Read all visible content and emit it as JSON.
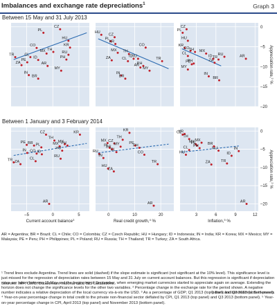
{
  "header": {
    "title": "Imbalances and exchange rate depreciations",
    "title_sup": "1",
    "graph_label": "Graph 3"
  },
  "sections": [
    "Between 15 May and 31 July 2013",
    "Between 1 January and 3 February 2014"
  ],
  "y_axis_label": "Appreciation rate,",
  "y_axis_sup": "2",
  "y_axis_unit": " %",
  "x_labels": [
    {
      "text": "Current account balance",
      "sup": "3"
    },
    {
      "text": "Real credit growth,",
      "sup": "4",
      "unit": " %"
    },
    {
      "text": "Inflation,",
      "sup": "5",
      "unit": " %"
    }
  ],
  "notes": "AR = Argentina; BR = Brazil; CL = Chile; CO = Colombia; CZ = Czech Republic; HU = Hungary; ID = Indonesia; IN = India; KR = Korea; MX = Mexico; MY = Malaysia; PE = Peru; PH = Philippines; PL = Poland; RU = Russia; TH = Thailand; TR = Turkey; ZA = South Africa.",
  "footnote": "¹ Trend lines exclude Argentina. Trend lines are solid (dashed) if the slope estimate is significant (not significant at the 10% level). This significance level is just missed for the regression of depreciation rates between 15 May and 31 July on current account balances. But this regression is significant if depreciation rates are taken between 15 May and the beginning of September, when emerging market currencies started to appreciate again on average. Extending the horizon does not change the significance levels for the other two variables. ² Percentage change in the exchange rate for the period shown. A negative number indicates a relative depreciation of the local currency vis-à-vis the USD. ³ As a percentage of GDP; Q1 2013 (top panel) and Q3 2013 (bottom panel). ⁴ Year-on-year percentage change in total credit to the private non-financial sector deflated by CPI, Q1 2013 (top panel) and Q3 2013 (bottom panel). ⁵ Year-on-year percentage change in CPI, April 2013 (top panel) and November 2013 (bottom panel).",
  "sources": "Sources: IMF; CEIC; Datastream; national data; BIS calculations.",
  "copyright": "© Bank for International Settlements",
  "colors": {
    "point": "#c0202a",
    "trend": "#2a6ab0",
    "panel_bg": "#dde6f1",
    "rule": "#2a4a8a"
  },
  "chart_data": [
    {
      "type": "scatter",
      "name": "top-left",
      "xlim": [
        -8,
        7
      ],
      "ylim": [
        -20,
        1
      ],
      "xticks": [
        -5,
        0,
        5
      ],
      "yticks": [
        0,
        -5,
        -10,
        -15,
        -20
      ],
      "show_yticks": false,
      "show_xticks": false,
      "trend": {
        "style": "solid",
        "x": [
          -7.5,
          6.5
        ],
        "y": [
          -8.2,
          -1.5
        ]
      },
      "points": [
        {
          "label": "CZ",
          "x": 1.4,
          "y": -0.6
        },
        {
          "label": "PL",
          "x": -1.8,
          "y": -1.5
        },
        {
          "label": "HU",
          "x": 3.0,
          "y": -3.5
        },
        {
          "label": "KR",
          "x": 3.3,
          "y": -5.2
        },
        {
          "label": "CO",
          "x": -3.1,
          "y": -5.3
        },
        {
          "label": "MX",
          "x": -1.2,
          "y": -6.7
        },
        {
          "label": "CL",
          "x": -4.3,
          "y": -7.6
        },
        {
          "label": "TH",
          "x": 0.1,
          "y": -6.3
        },
        {
          "label": "RU",
          "x": 3.0,
          "y": -7.0
        },
        {
          "label": "PH",
          "x": 2.6,
          "y": -8.2
        },
        {
          "label": "TR",
          "x": -7.2,
          "y": -7.6
        },
        {
          "label": "ID",
          "x": -2.8,
          "y": -8.3
        },
        {
          "label": "PE",
          "x": -4.9,
          "y": -8.9
        },
        {
          "label": "ZA",
          "x": -6.0,
          "y": -9.6
        },
        {
          "label": "AR",
          "x": -1.0,
          "y": -9.8
        },
        {
          "label": "MY",
          "x": 1.6,
          "y": -11.0
        },
        {
          "label": "IN",
          "x": -4.6,
          "y": -12.1
        },
        {
          "label": "BR",
          "x": -2.8,
          "y": -13.0
        }
      ]
    },
    {
      "type": "scatter",
      "name": "top-middle",
      "xlim": [
        -5,
        25
      ],
      "ylim": [
        -20,
        1
      ],
      "xticks": [
        0,
        10,
        20
      ],
      "yticks": [
        0,
        -5,
        -10,
        -15,
        -20
      ],
      "show_yticks": false,
      "show_xticks": false,
      "trend": {
        "style": "solid",
        "x": [
          -4,
          23
        ],
        "y": [
          -3.0,
          -10.5
        ]
      },
      "points": [
        {
          "label": "HU",
          "x": -2.8,
          "y": -2.0
        },
        {
          "label": "CZ",
          "x": 2.3,
          "y": -2.6
        },
        {
          "label": "PL",
          "x": 0.8,
          "y": -3.6
        },
        {
          "label": "KR",
          "x": 2.6,
          "y": -4.3
        },
        {
          "label": "CO",
          "x": 14.2,
          "y": -5.2
        },
        {
          "label": "MX",
          "x": 3.5,
          "y": -6.5
        },
        {
          "label": "TH",
          "x": 7.8,
          "y": -6.8
        },
        {
          "label": "ZA",
          "x": 1.2,
          "y": -8.4
        },
        {
          "label": "ID",
          "x": 9.6,
          "y": -8.0
        },
        {
          "label": "CL",
          "x": 7.4,
          "y": -8.6
        },
        {
          "label": "RU",
          "x": 11.3,
          "y": -8.0
        },
        {
          "label": "PH",
          "x": 13.3,
          "y": -9.8
        },
        {
          "label": "AR",
          "x": 12.2,
          "y": -10.2
        },
        {
          "label": "TR",
          "x": 20.5,
          "y": -8.6
        },
        {
          "label": "MY",
          "x": 15.7,
          "y": -11.0
        },
        {
          "label": "IN",
          "x": 4.8,
          "y": -12.2
        },
        {
          "label": "BR",
          "x": 6.4,
          "y": -13.0
        }
      ]
    },
    {
      "type": "scatter",
      "name": "top-right",
      "xlim": [
        0.5,
        12.5
      ],
      "ylim": [
        -20,
        1
      ],
      "xticks": [
        3,
        6,
        9,
        12
      ],
      "yticks": [
        0,
        -5,
        -10,
        -15,
        -20
      ],
      "show_yticks": true,
      "show_xticks": false,
      "trend": {
        "style": "solid",
        "x": [
          0.8,
          6.8
        ],
        "y": [
          -5.5,
          -9.8
        ]
      },
      "points": [
        {
          "label": "CZ",
          "x": 1.5,
          "y": -0.6
        },
        {
          "label": "PL",
          "x": 0.9,
          "y": -1.5
        },
        {
          "label": "HU",
          "x": 1.7,
          "y": -3.5
        },
        {
          "label": "KR",
          "x": 1.2,
          "y": -5.3
        },
        {
          "label": "CO",
          "x": 2.1,
          "y": -6.0
        },
        {
          "label": "TH",
          "x": 2.8,
          "y": -6.3
        },
        {
          "label": "CL",
          "x": 1.7,
          "y": -7.3
        },
        {
          "label": "MX",
          "x": 4.5,
          "y": -6.7
        },
        {
          "label": "RU",
          "x": 7.3,
          "y": -7.5
        },
        {
          "label": "AR",
          "x": 10.6,
          "y": -8.0
        },
        {
          "label": "PE",
          "x": 2.3,
          "y": -9.4
        },
        {
          "label": "PH",
          "x": 2.6,
          "y": -9.2
        },
        {
          "label": "ZA",
          "x": 5.8,
          "y": -9.0
        },
        {
          "label": "ID",
          "x": 5.6,
          "y": -8.0
        },
        {
          "label": "TR",
          "x": 6.4,
          "y": -8.2
        },
        {
          "label": "MY",
          "x": 1.7,
          "y": -10.7
        },
        {
          "label": "IN",
          "x": 4.9,
          "y": -12.4
        },
        {
          "label": "BR",
          "x": 6.5,
          "y": -13.4
        }
      ]
    },
    {
      "type": "scatter",
      "name": "bottom-left",
      "xlim": [
        -8,
        7
      ],
      "ylim": [
        -22,
        1
      ],
      "xticks": [
        -5,
        0,
        5
      ],
      "yticks": [
        0,
        -5,
        -10,
        -15,
        -20
      ],
      "show_yticks": false,
      "show_xticks": true,
      "trend": {
        "style": "dashed",
        "x": [
          -7.5,
          6.5
        ],
        "y": [
          -6.7,
          -3.4
        ]
      },
      "points": [
        {
          "label": "CZ",
          "x": -1.3,
          "y": -1.0
        },
        {
          "label": "KR",
          "x": 5.2,
          "y": -1.0
        },
        {
          "label": "PE",
          "x": -5.0,
          "y": -3.8
        },
        {
          "label": "BR",
          "x": -3.6,
          "y": -4.0
        },
        {
          "label": "TH",
          "x": 0.3,
          "y": -2.6
        },
        {
          "label": "MX",
          "x": 1.3,
          "y": -4.2
        },
        {
          "label": "MY",
          "x": 2.3,
          "y": -3.6
        },
        {
          "label": "PH",
          "x": 2.8,
          "y": -4.0
        },
        {
          "label": "PL",
          "x": -2.2,
          "y": -4.5
        },
        {
          "label": "HU",
          "x": 1.8,
          "y": -5.4
        },
        {
          "label": "IN",
          "x": -4.9,
          "y": -6.0
        },
        {
          "label": "CO",
          "x": -3.1,
          "y": -6.2
        },
        {
          "label": "ID",
          "x": -2.1,
          "y": -6.4
        },
        {
          "label": "RU",
          "x": 1.5,
          "y": -7.6
        },
        {
          "label": "CL",
          "x": -3.3,
          "y": -8.3
        },
        {
          "label": "ZA",
          "x": -6.2,
          "y": -9.1
        },
        {
          "label": "TR",
          "x": -7.5,
          "y": -8.6
        },
        {
          "label": "AR",
          "x": -0.7,
          "y": -20.0
        }
      ]
    },
    {
      "type": "scatter",
      "name": "bottom-middle",
      "xlim": [
        -5,
        25
      ],
      "ylim": [
        -22,
        1
      ],
      "xticks": [
        0,
        10,
        20
      ],
      "yticks": [
        0,
        -5,
        -10,
        -15,
        -20
      ],
      "show_yticks": false,
      "show_xticks": true,
      "trend": {
        "style": "dashed",
        "x": [
          -4,
          23
        ],
        "y": [
          -6.0,
          -3.6
        ]
      },
      "points": [
        {
          "label": "KR",
          "x": 8.0,
          "y": -0.5
        },
        {
          "label": "TH",
          "x": 5.4,
          "y": -2.4
        },
        {
          "label": "MX",
          "x": -0.4,
          "y": -3.3
        },
        {
          "label": "CZ",
          "x": 2.2,
          "y": -3.4
        },
        {
          "label": "PE",
          "x": 10.2,
          "y": -4.0
        },
        {
          "label": "PL",
          "x": 0.4,
          "y": -4.6
        },
        {
          "label": "MY",
          "x": 4.6,
          "y": -4.3
        },
        {
          "label": "PH",
          "x": 11.8,
          "y": -4.6
        },
        {
          "label": "BR",
          "x": 1.4,
          "y": -5.0
        },
        {
          "label": "CL",
          "x": 3.0,
          "y": -5.8
        },
        {
          "label": "RU",
          "x": -3.6,
          "y": -6.3
        },
        {
          "label": "CO",
          "x": 13.7,
          "y": -6.5
        },
        {
          "label": "IN",
          "x": -2.0,
          "y": -7.4
        },
        {
          "label": "TR",
          "x": 18.8,
          "y": -9.1
        },
        {
          "label": "HU",
          "x": -0.2,
          "y": -10.3
        },
        {
          "label": "ZA",
          "x": 2.0,
          "y": -11.1
        },
        {
          "label": "AR",
          "x": 17.3,
          "y": -20.5
        }
      ]
    },
    {
      "type": "scatter",
      "name": "bottom-right",
      "xlim": [
        0.5,
        12.5
      ],
      "ylim": [
        -22,
        1
      ],
      "xticks": [
        3,
        6,
        9,
        12
      ],
      "yticks": [
        0,
        -5,
        -10,
        -15,
        -20
      ],
      "show_yticks": true,
      "show_xticks": true,
      "trend": {
        "style": "dashed",
        "x": [
          0.8,
          9.5
        ],
        "y": [
          -5.8,
          -4.1
        ]
      },
      "points": [
        {
          "label": "CZ",
          "x": 0.9,
          "y": -1.0
        },
        {
          "label": "KR",
          "x": 1.2,
          "y": -0.8
        },
        {
          "label": "TH",
          "x": 1.9,
          "y": -2.2
        },
        {
          "label": "MX",
          "x": 3.8,
          "y": -3.2
        },
        {
          "label": "MY",
          "x": 2.9,
          "y": -3.6
        },
        {
          "label": "PE",
          "x": 3.1,
          "y": -4.0
        },
        {
          "label": "PH",
          "x": 3.5,
          "y": -4.7
        },
        {
          "label": "RU",
          "x": 6.4,
          "y": -5.4
        },
        {
          "label": "BR",
          "x": 5.7,
          "y": -4.2
        },
        {
          "label": "IN",
          "x": 9.5,
          "y": -5.5
        },
        {
          "label": "CL",
          "x": 1.9,
          "y": -5.2
        },
        {
          "label": "HU",
          "x": 1.4,
          "y": -6.5
        },
        {
          "label": "ID",
          "x": 8.4,
          "y": -6.8
        },
        {
          "label": "TR",
          "x": 7.7,
          "y": -8.9
        },
        {
          "label": "ZA",
          "x": 5.3,
          "y": -9.2
        },
        {
          "label": "AR",
          "x": 10.7,
          "y": -20.0
        }
      ]
    }
  ]
}
